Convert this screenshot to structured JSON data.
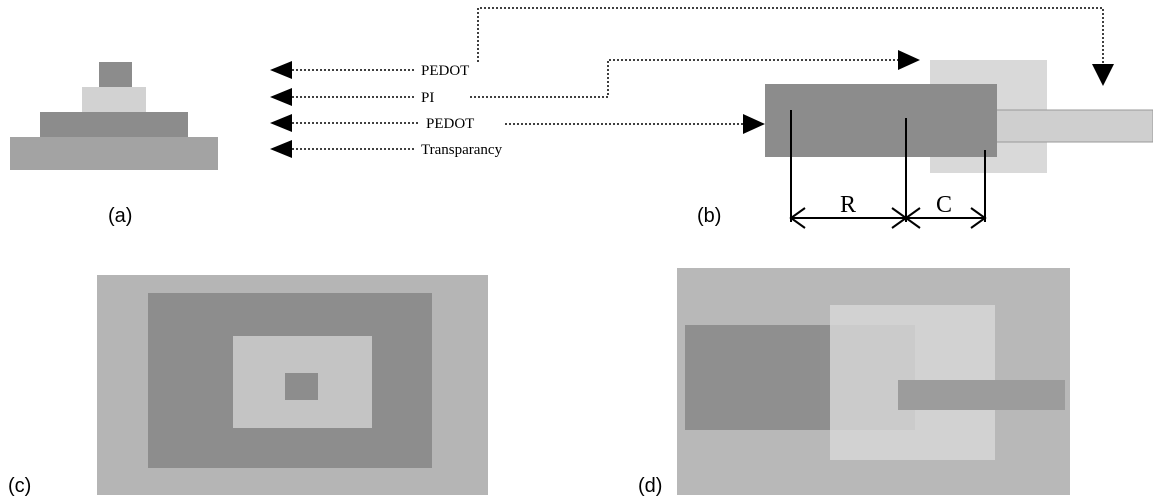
{
  "layers": [
    "PEDOT",
    "PI",
    "PEDOT",
    "Transparancy"
  ],
  "dimensions": [
    "R",
    "C"
  ],
  "panels": [
    "(a)",
    "(b)",
    "(c)",
    "(d)"
  ]
}
